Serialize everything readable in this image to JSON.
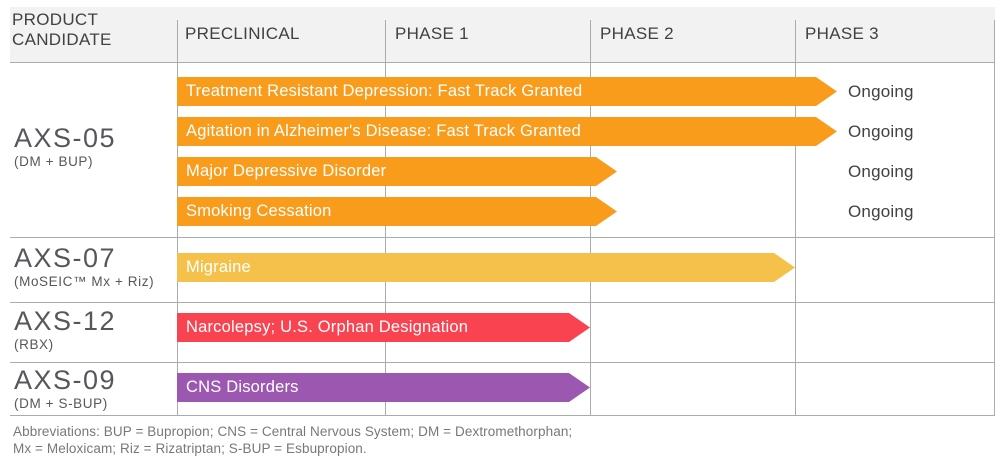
{
  "header": {
    "product_col_line1": "PRODUCT",
    "product_col_line2": "CANDIDATE",
    "columns": [
      "PRECLINICAL",
      "PHASE 1",
      "PHASE 2",
      "PHASE 3"
    ]
  },
  "colors": {
    "orange": "#f99c1c",
    "yellow": "#f5c14a",
    "red": "#fa4350",
    "purple": "#9c58b1",
    "header_bg": "#f2f2f3",
    "grid_line": "#a9abad",
    "bar_text": "#ffffff",
    "status_text": "#414042",
    "product_text": "#55575b",
    "footer_text": "#77787b"
  },
  "chart_data": {
    "type": "bar",
    "subtype": "horizontal-pipeline-gantt",
    "phase_columns": [
      "PRECLINICAL",
      "PHASE 1",
      "PHASE 2",
      "PHASE 3"
    ],
    "phase_scale": "0 = start of Preclinical, 1 = end of Preclinical, 2 = end of Phase 1, 3 = end of Phase 2, 4 = end of Phase 3",
    "rows": [
      {
        "product": "AXS-05",
        "detail": "(DM + BUP)",
        "bars": [
          {
            "label": "Treatment Resistant Depression: Fast Track Granted",
            "color": "orange",
            "start_phase": 0,
            "end_phase": 3.21,
            "status": "Ongoing"
          },
          {
            "label": "Agitation in Alzheimer's Disease: Fast Track Granted",
            "color": "orange",
            "start_phase": 0,
            "end_phase": 3.21,
            "status": "Ongoing"
          },
          {
            "label": "Major Depressive Disorder",
            "color": "orange",
            "start_phase": 0,
            "end_phase": 2.13,
            "status": "Ongoing"
          },
          {
            "label": "Smoking Cessation",
            "color": "orange",
            "start_phase": 0,
            "end_phase": 2.13,
            "status": "Ongoing"
          }
        ]
      },
      {
        "product": "AXS-07",
        "detail": "(MoSEIC™ Mx + Riz)",
        "bars": [
          {
            "label": "Migraine",
            "color": "yellow",
            "start_phase": 0,
            "end_phase": 3.0,
            "status": ""
          }
        ]
      },
      {
        "product": "AXS-12",
        "detail": "(RBX)",
        "bars": [
          {
            "label": "Narcolepsy; U.S. Orphan Designation",
            "color": "red",
            "start_phase": 0,
            "end_phase": 2.0,
            "status": ""
          }
        ]
      },
      {
        "product": "AXS-09",
        "detail": "(DM + S-BUP)",
        "bars": [
          {
            "label": "CNS Disorders",
            "color": "purple",
            "start_phase": 0,
            "end_phase": 2.0,
            "status": ""
          }
        ]
      }
    ]
  },
  "footer": {
    "line1": "Abbreviations: BUP = Bupropion; CNS = Central Nervous System; DM = Dextromethorphan;",
    "line2": "Mx = Meloxicam; Riz = Rizatriptan; S-BUP = Esbupropion."
  }
}
